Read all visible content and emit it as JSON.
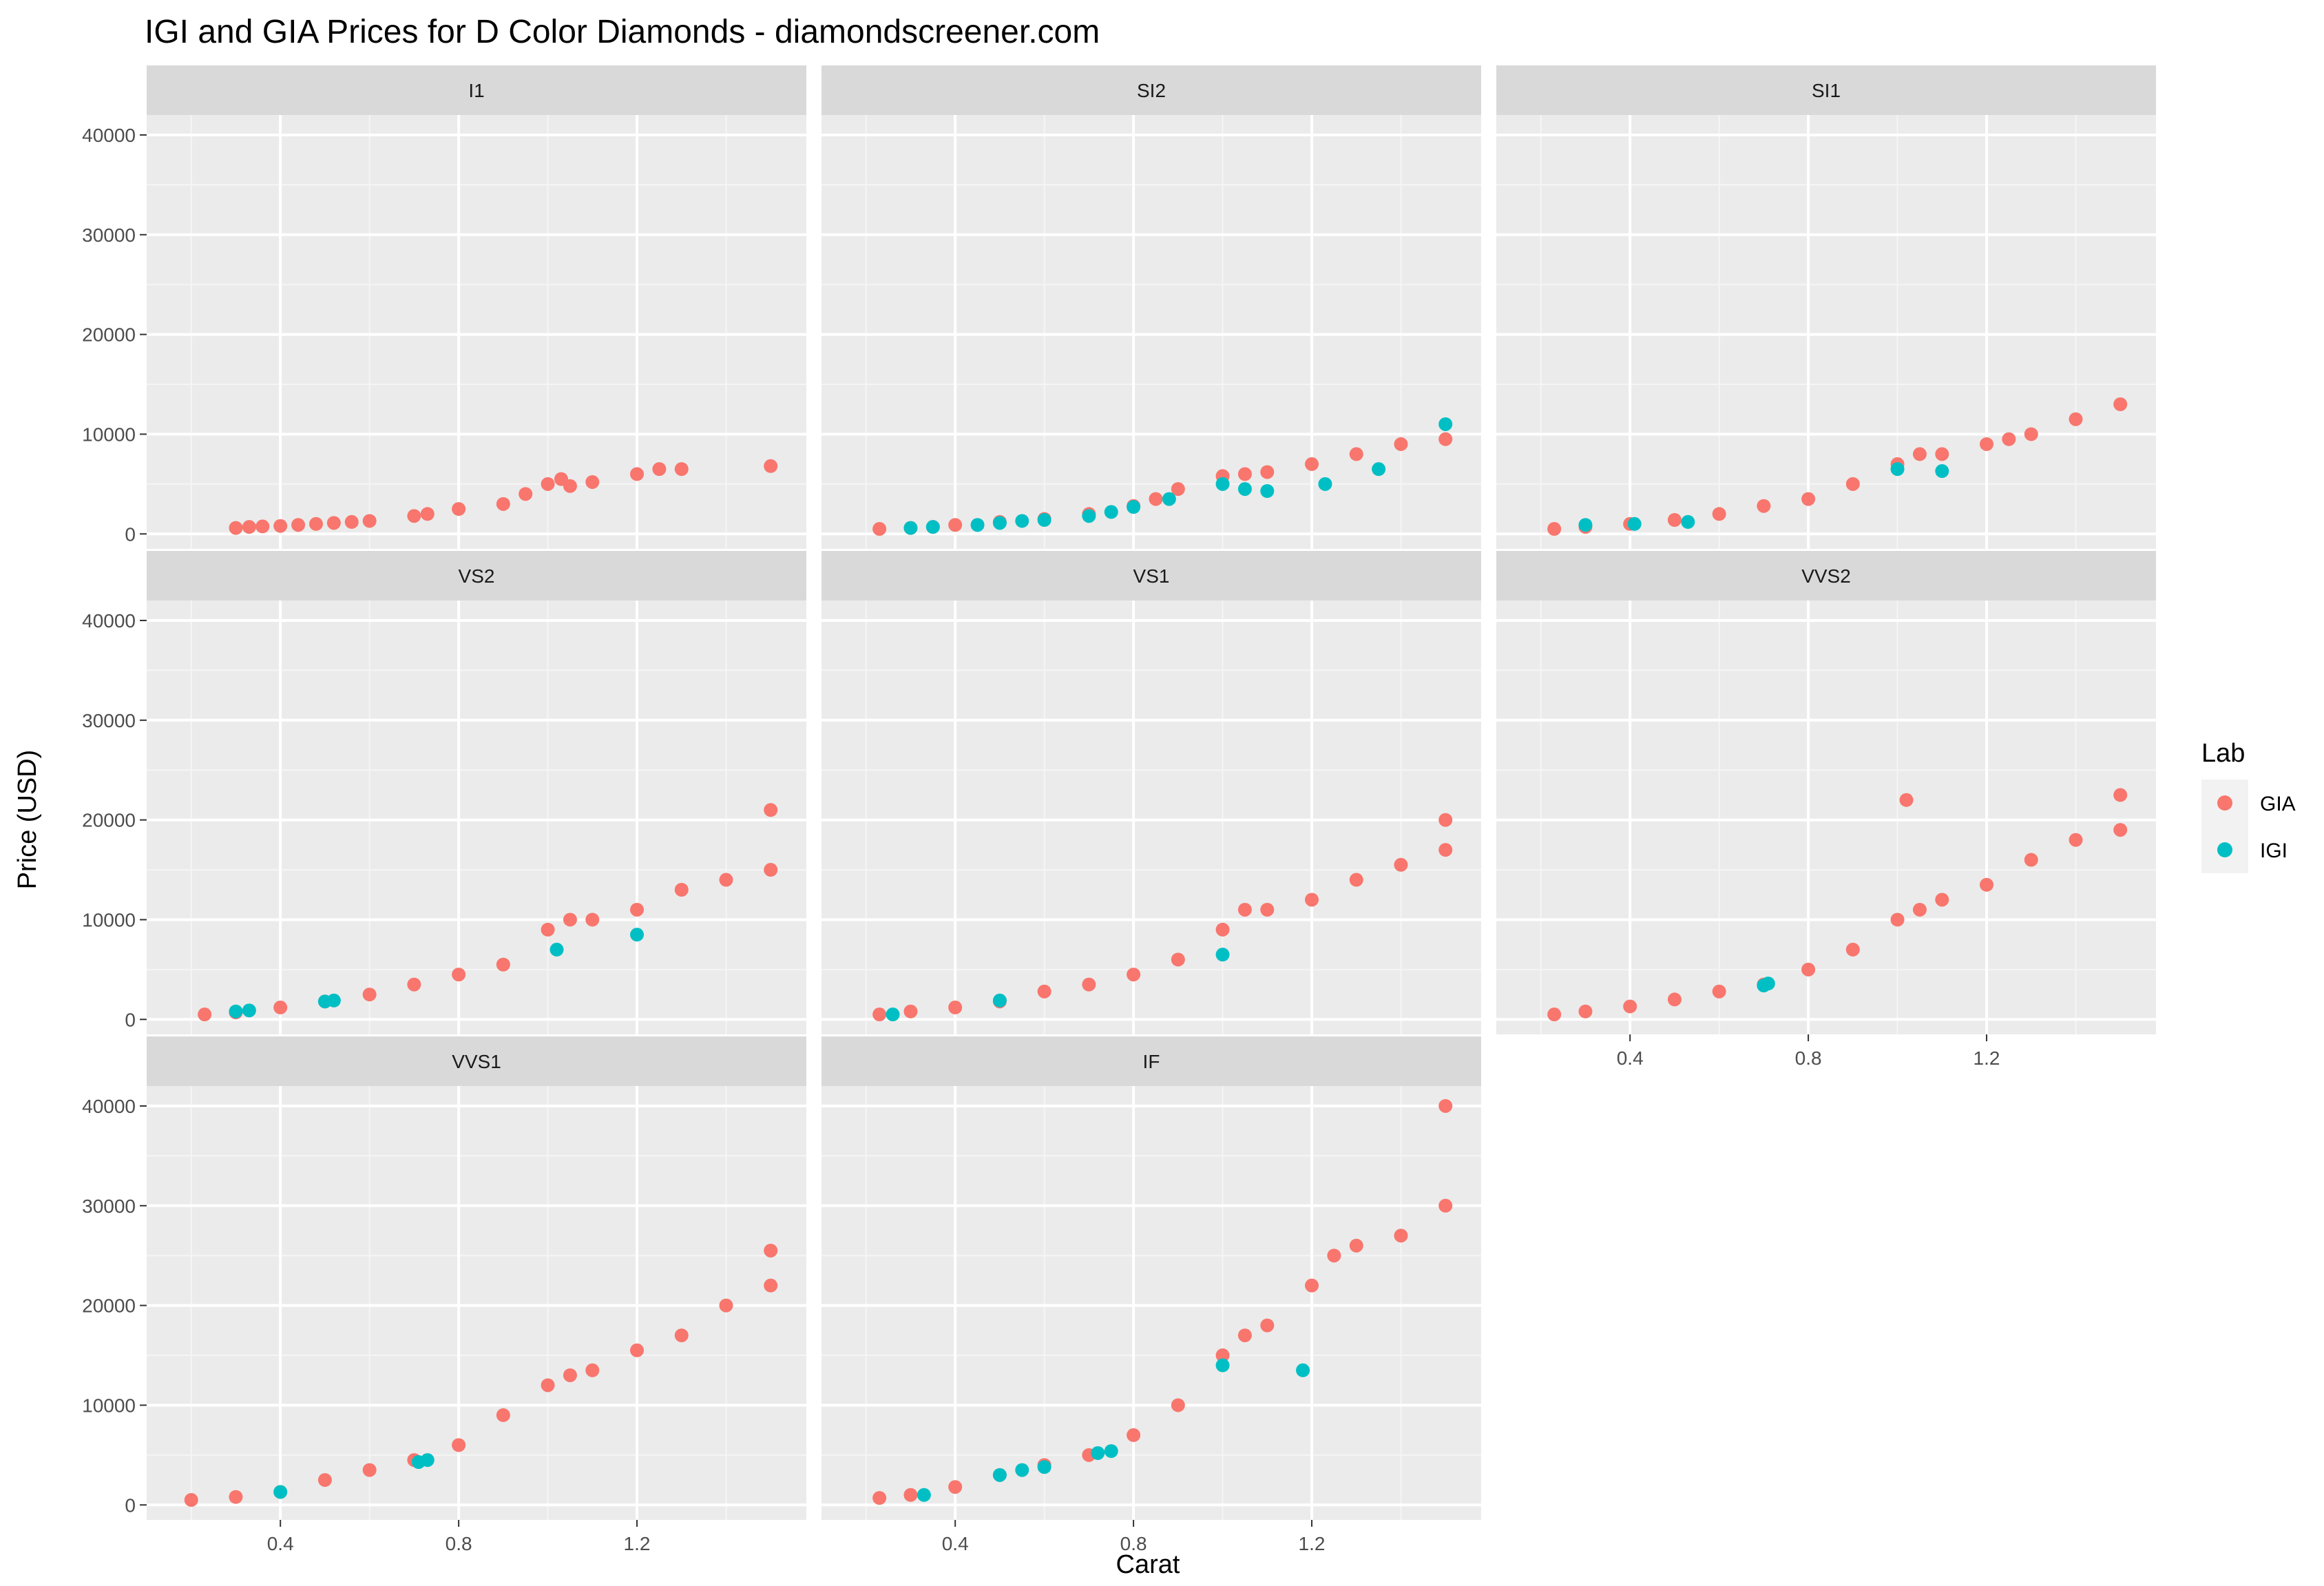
{
  "chart_data": {
    "type": "scatter",
    "title": "IGI and GIA Prices for D Color Diamonds - diamondscreener.com",
    "xlabel": "Carat",
    "ylabel": "Price (USD)",
    "xlim": [
      0.1,
      1.58
    ],
    "ylim": [
      -1500,
      42000
    ],
    "x_ticks": [
      "0.4",
      "0.8",
      "1.2"
    ],
    "x_tick_values": [
      0.4,
      0.8,
      1.2
    ],
    "y_ticks": [
      "0",
      "10000",
      "20000",
      "30000",
      "40000"
    ],
    "y_tick_values": [
      0,
      10000,
      20000,
      30000,
      40000
    ],
    "grid": true,
    "legend": {
      "title": "Lab",
      "placement": "right",
      "entries": [
        {
          "name": "GIA",
          "color": "#F8766D"
        },
        {
          "name": "IGI",
          "color": "#00BFC4"
        }
      ]
    },
    "facets": [
      {
        "label": "I1",
        "series": [
          {
            "name": "GIA",
            "points": [
              [
                0.3,
                600
              ],
              [
                0.33,
                700
              ],
              [
                0.36,
                750
              ],
              [
                0.4,
                800
              ],
              [
                0.44,
                900
              ],
              [
                0.48,
                1000
              ],
              [
                0.52,
                1100
              ],
              [
                0.56,
                1200
              ],
              [
                0.6,
                1300
              ],
              [
                0.7,
                1800
              ],
              [
                0.73,
                2000
              ],
              [
                0.8,
                2500
              ],
              [
                0.9,
                3000
              ],
              [
                0.95,
                4000
              ],
              [
                1.0,
                5000
              ],
              [
                1.03,
                5500
              ],
              [
                1.05,
                4800
              ],
              [
                1.1,
                5200
              ],
              [
                1.2,
                6000
              ],
              [
                1.25,
                6500
              ],
              [
                1.3,
                6500
              ],
              [
                1.5,
                6800
              ]
            ]
          },
          {
            "name": "IGI",
            "points": []
          }
        ]
      },
      {
        "label": "SI2",
        "series": [
          {
            "name": "GIA",
            "points": [
              [
                0.23,
                500
              ],
              [
                0.3,
                600
              ],
              [
                0.35,
                700
              ],
              [
                0.4,
                900
              ],
              [
                0.5,
                1200
              ],
              [
                0.6,
                1500
              ],
              [
                0.7,
                2000
              ],
              [
                0.8,
                2800
              ],
              [
                0.85,
                3500
              ],
              [
                0.9,
                4500
              ],
              [
                1.0,
                5800
              ],
              [
                1.05,
                6000
              ],
              [
                1.1,
                6200
              ],
              [
                1.2,
                7000
              ],
              [
                1.3,
                8000
              ],
              [
                1.4,
                9000
              ],
              [
                1.5,
                9500
              ]
            ]
          },
          {
            "name": "IGI",
            "points": [
              [
                0.3,
                600
              ],
              [
                0.35,
                700
              ],
              [
                0.45,
                900
              ],
              [
                0.5,
                1100
              ],
              [
                0.55,
                1300
              ],
              [
                0.6,
                1400
              ],
              [
                0.7,
                1800
              ],
              [
                0.75,
                2200
              ],
              [
                0.8,
                2700
              ],
              [
                0.88,
                3500
              ],
              [
                1.0,
                5000
              ],
              [
                1.05,
                4500
              ],
              [
                1.1,
                4300
              ],
              [
                1.23,
                5000
              ],
              [
                1.35,
                6500
              ],
              [
                1.5,
                11000
              ]
            ]
          }
        ]
      },
      {
        "label": "SI1",
        "series": [
          {
            "name": "GIA",
            "points": [
              [
                0.23,
                500
              ],
              [
                0.3,
                700
              ],
              [
                0.4,
                1000
              ],
              [
                0.5,
                1400
              ],
              [
                0.6,
                2000
              ],
              [
                0.7,
                2800
              ],
              [
                0.8,
                3500
              ],
              [
                0.9,
                5000
              ],
              [
                1.0,
                7000
              ],
              [
                1.05,
                8000
              ],
              [
                1.1,
                8000
              ],
              [
                1.2,
                9000
              ],
              [
                1.25,
                9500
              ],
              [
                1.3,
                10000
              ],
              [
                1.4,
                11500
              ],
              [
                1.5,
                13000
              ]
            ]
          },
          {
            "name": "IGI",
            "points": [
              [
                0.3,
                900
              ],
              [
                0.41,
                1000
              ],
              [
                0.53,
                1200
              ],
              [
                1.0,
                6500
              ],
              [
                1.1,
                6300
              ]
            ]
          }
        ]
      },
      {
        "label": "VS2",
        "series": [
          {
            "name": "GIA",
            "points": [
              [
                0.23,
                500
              ],
              [
                0.3,
                700
              ],
              [
                0.4,
                1200
              ],
              [
                0.5,
                1800
              ],
              [
                0.6,
                2500
              ],
              [
                0.7,
                3500
              ],
              [
                0.8,
                4500
              ],
              [
                0.9,
                5500
              ],
              [
                1.0,
                9000
              ],
              [
                1.05,
                10000
              ],
              [
                1.1,
                10000
              ],
              [
                1.2,
                11000
              ],
              [
                1.3,
                13000
              ],
              [
                1.4,
                14000
              ],
              [
                1.5,
                15000
              ],
              [
                1.5,
                21000
              ]
            ]
          },
          {
            "name": "IGI",
            "points": [
              [
                0.3,
                800
              ],
              [
                0.33,
                900
              ],
              [
                0.5,
                1800
              ],
              [
                0.52,
                1900
              ],
              [
                1.02,
                7000
              ],
              [
                1.2,
                8500
              ]
            ]
          }
        ]
      },
      {
        "label": "VS1",
        "series": [
          {
            "name": "GIA",
            "points": [
              [
                0.23,
                500
              ],
              [
                0.3,
                800
              ],
              [
                0.4,
                1200
              ],
              [
                0.5,
                1800
              ],
              [
                0.6,
                2800
              ],
              [
                0.7,
                3500
              ],
              [
                0.8,
                4500
              ],
              [
                0.9,
                6000
              ],
              [
                1.0,
                9000
              ],
              [
                1.05,
                11000
              ],
              [
                1.1,
                11000
              ],
              [
                1.2,
                12000
              ],
              [
                1.3,
                14000
              ],
              [
                1.4,
                15500
              ],
              [
                1.5,
                17000
              ],
              [
                1.5,
                20000
              ]
            ]
          },
          {
            "name": "IGI",
            "points": [
              [
                0.26,
                500
              ],
              [
                0.5,
                1900
              ],
              [
                1.0,
                6500
              ]
            ]
          }
        ]
      },
      {
        "label": "VVS2",
        "series": [
          {
            "name": "GIA",
            "points": [
              [
                0.23,
                500
              ],
              [
                0.3,
                800
              ],
              [
                0.4,
                1300
              ],
              [
                0.5,
                2000
              ],
              [
                0.6,
                2800
              ],
              [
                0.7,
                3500
              ],
              [
                0.8,
                5000
              ],
              [
                0.9,
                7000
              ],
              [
                1.0,
                10000
              ],
              [
                1.02,
                22000
              ],
              [
                1.05,
                11000
              ],
              [
                1.1,
                12000
              ],
              [
                1.2,
                13500
              ],
              [
                1.3,
                16000
              ],
              [
                1.4,
                18000
              ],
              [
                1.5,
                19000
              ],
              [
                1.5,
                22500
              ]
            ]
          },
          {
            "name": "IGI",
            "points": [
              [
                0.7,
                3400
              ],
              [
                0.71,
                3600
              ]
            ]
          }
        ]
      },
      {
        "label": "VVS1",
        "series": [
          {
            "name": "GIA",
            "points": [
              [
                0.2,
                500
              ],
              [
                0.3,
                800
              ],
              [
                0.4,
                1300
              ],
              [
                0.5,
                2500
              ],
              [
                0.6,
                3500
              ],
              [
                0.7,
                4500
              ],
              [
                0.8,
                6000
              ],
              [
                0.9,
                9000
              ],
              [
                1.0,
                12000
              ],
              [
                1.05,
                13000
              ],
              [
                1.1,
                13500
              ],
              [
                1.2,
                15500
              ],
              [
                1.3,
                17000
              ],
              [
                1.4,
                20000
              ],
              [
                1.5,
                22000
              ],
              [
                1.5,
                25500
              ]
            ]
          },
          {
            "name": "IGI",
            "points": [
              [
                0.4,
                1300
              ],
              [
                0.71,
                4300
              ],
              [
                0.73,
                4500
              ]
            ]
          }
        ]
      },
      {
        "label": "IF",
        "series": [
          {
            "name": "GIA",
            "points": [
              [
                0.23,
                700
              ],
              [
                0.3,
                1000
              ],
              [
                0.4,
                1800
              ],
              [
                0.5,
                3000
              ],
              [
                0.6,
                4000
              ],
              [
                0.7,
                5000
              ],
              [
                0.8,
                7000
              ],
              [
                0.9,
                10000
              ],
              [
                1.0,
                15000
              ],
              [
                1.05,
                17000
              ],
              [
                1.1,
                18000
              ],
              [
                1.2,
                22000
              ],
              [
                1.25,
                25000
              ],
              [
                1.3,
                26000
              ],
              [
                1.4,
                27000
              ],
              [
                1.5,
                30000
              ],
              [
                1.5,
                40000
              ]
            ]
          },
          {
            "name": "IGI",
            "points": [
              [
                0.33,
                1000
              ],
              [
                0.5,
                3000
              ],
              [
                0.55,
                3500
              ],
              [
                0.6,
                3800
              ],
              [
                0.72,
                5200
              ],
              [
                0.75,
                5400
              ],
              [
                1.0,
                14000
              ],
              [
                1.18,
                13500
              ]
            ]
          }
        ]
      }
    ]
  }
}
